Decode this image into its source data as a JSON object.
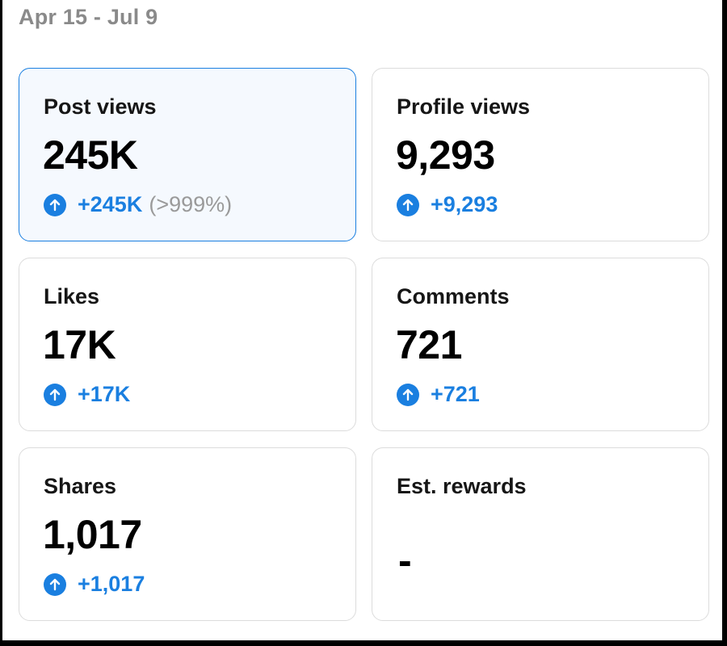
{
  "header": {
    "date_range": "Apr 15 - Jul 9"
  },
  "metrics": [
    {
      "label": "Post views",
      "value": "245K",
      "delta": "+245K",
      "delta_pct": "(>999%)",
      "selected": true
    },
    {
      "label": "Profile views",
      "value": "9,293",
      "delta": "+9,293"
    },
    {
      "label": "Likes",
      "value": "17K",
      "delta": "+17K"
    },
    {
      "label": "Comments",
      "value": "721",
      "delta": "+721"
    },
    {
      "label": "Shares",
      "value": "1,017",
      "delta": "+1,017"
    },
    {
      "label": "Est. rewards",
      "value": "-"
    }
  ],
  "colors": {
    "accent": "#1a7fe0",
    "muted": "#8a8a8a",
    "border": "#dcdcdc",
    "selected_bg": "#f5f9fe"
  },
  "icons": {
    "delta_icon": "arrow-up-circle-icon"
  }
}
